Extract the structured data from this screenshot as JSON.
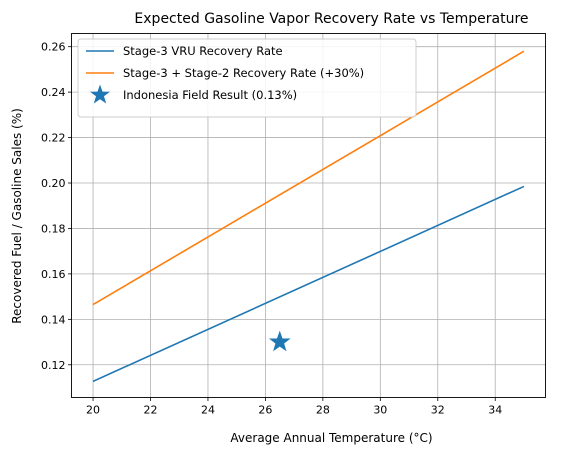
{
  "chart_data": {
    "type": "line",
    "title": "Expected Gasoline Vapor Recovery Rate vs Temperature",
    "xlabel": "Average Annual Temperature (°C)",
    "ylabel": "Recovered Fuel / Gasoline Sales (%)",
    "xlim": [
      19.25,
      35.75
    ],
    "ylim": [
      0.1056,
      0.2658
    ],
    "xticks": [
      20,
      22,
      24,
      26,
      28,
      30,
      32,
      34
    ],
    "yticks": [
      0.12,
      0.14,
      0.16,
      0.18,
      0.2,
      0.22,
      0.24,
      0.26
    ],
    "xtick_labels": [
      "20",
      "22",
      "24",
      "26",
      "28",
      "30",
      "32",
      "34"
    ],
    "ytick_labels": [
      "0.12",
      "0.14",
      "0.16",
      "0.18",
      "0.20",
      "0.22",
      "0.24",
      "0.26"
    ],
    "grid": true,
    "legend_position": "top-left",
    "series": [
      {
        "name": "Stage-3 VRU Recovery Rate",
        "kind": "line",
        "color": "#1f77b4",
        "x": [
          20,
          35
        ],
        "y": [
          0.1127,
          0.1985
        ]
      },
      {
        "name": "Stage-3 + Stage-2 Recovery Rate (+30%)",
        "kind": "line",
        "color": "#ff7f0e",
        "x": [
          20,
          35
        ],
        "y": [
          0.1465,
          0.258
        ]
      },
      {
        "name": "Indonesia Field Result (0.13%)",
        "kind": "marker",
        "marker": "star",
        "color": "#1f77b4",
        "x": [
          26.5
        ],
        "y": [
          0.13
        ]
      }
    ]
  }
}
